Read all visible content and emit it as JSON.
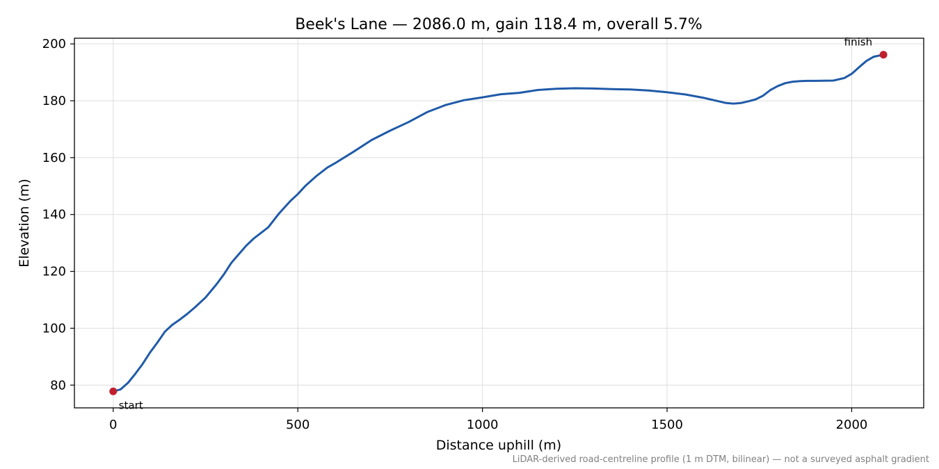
{
  "chart_data": {
    "type": "line",
    "title": "Beek's Lane — 2086.0 m, gain 118.4 m, overall 5.7%",
    "xlabel": "Distance uphill (m)",
    "ylabel": "Elevation (m)",
    "xlim": [
      -105,
      2195
    ],
    "ylim": [
      72,
      202
    ],
    "xticks": [
      0,
      500,
      1000,
      1500,
      2000
    ],
    "yticks": [
      80,
      100,
      120,
      140,
      160,
      180,
      200
    ],
    "grid": true,
    "line_color": "#1f5aa8",
    "marker_color": "#c0202e",
    "series": [
      {
        "x": [
          0,
          20,
          40,
          60,
          80,
          100,
          120,
          140,
          160,
          180,
          200,
          220,
          250,
          280,
          300,
          320,
          340,
          360,
          380,
          400,
          420,
          450,
          480,
          500,
          520,
          550,
          580,
          600,
          650,
          700,
          750,
          800,
          850,
          900,
          950,
          1000,
          1050,
          1100,
          1150,
          1200,
          1250,
          1300,
          1350,
          1400,
          1450,
          1500,
          1550,
          1600,
          1640,
          1660,
          1680,
          1700,
          1720,
          1740,
          1760,
          1780,
          1800,
          1820,
          1840,
          1860,
          1880,
          1900,
          1950,
          1980,
          2000,
          2020,
          2040,
          2060,
          2086
        ],
        "y": [
          77.8,
          78.5,
          80.8,
          84.0,
          87.5,
          91.5,
          95.0,
          98.8,
          101.2,
          103.0,
          105.0,
          107.2,
          110.8,
          115.5,
          119.0,
          123.0,
          126.0,
          129.0,
          131.5,
          133.5,
          135.5,
          140.5,
          144.8,
          147.2,
          150.0,
          153.5,
          156.5,
          158.0,
          162.0,
          166.2,
          169.5,
          172.5,
          176.0,
          178.5,
          180.2,
          181.2,
          182.3,
          182.8,
          183.8,
          184.2,
          184.4,
          184.3,
          184.1,
          184.0,
          183.6,
          183.0,
          182.2,
          181.0,
          179.8,
          179.2,
          179.0,
          179.2,
          179.8,
          180.5,
          181.8,
          183.8,
          185.2,
          186.2,
          186.7,
          186.9,
          187.0,
          187.0,
          187.1,
          188.0,
          189.5,
          191.8,
          194.0,
          195.5,
          196.2
        ]
      }
    ],
    "annotations": [
      {
        "text": "start",
        "x": 0,
        "y": 77.8
      },
      {
        "text": "finish",
        "x": 2086,
        "y": 196.2
      }
    ],
    "caption": "LiDAR-derived road-centreline profile (1 m DTM, bilinear) — not a surveyed asphalt gradient"
  }
}
